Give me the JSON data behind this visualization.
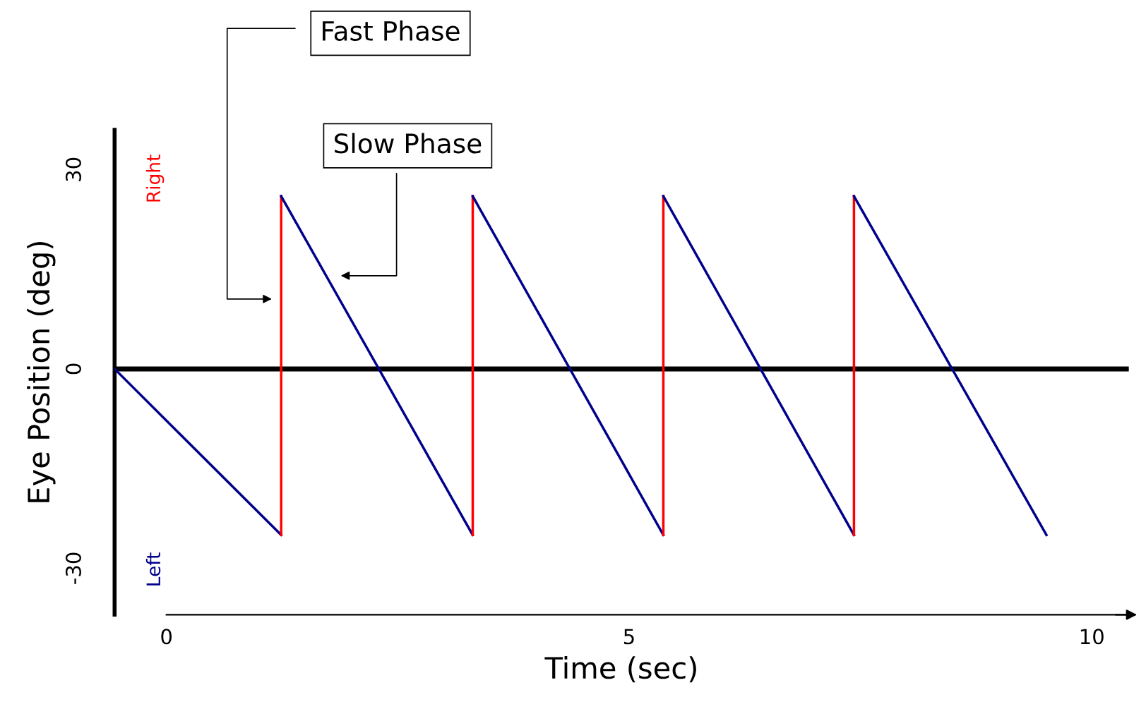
{
  "chart_data": {
    "type": "line",
    "xlabel": "Time (sec)",
    "ylabel": "Eye Position (deg)",
    "xlim": [
      -0.56,
      10.4
    ],
    "ylim": [
      -37,
      36
    ],
    "xticks": [
      0,
      5,
      10
    ],
    "yticks": [
      -30,
      0,
      30
    ],
    "grid": false,
    "legend": false,
    "marker": "none",
    "line_style": "solid",
    "series": [
      {
        "color": "#00008b",
        "x": [
          -0.56,
          1.24
        ],
        "values": [
          0,
          -25
        ]
      },
      {
        "color": "#ff0000",
        "x": [
          1.24,
          1.24
        ],
        "values": [
          -25,
          26
        ]
      },
      {
        "color": "#00008b",
        "x": [
          1.24,
          3.31
        ],
        "values": [
          26,
          -25
        ]
      },
      {
        "color": "#ff0000",
        "x": [
          3.31,
          3.31
        ],
        "values": [
          -25,
          26
        ]
      },
      {
        "color": "#00008b",
        "x": [
          3.31,
          5.37
        ],
        "values": [
          26,
          -25
        ]
      },
      {
        "color": "#ff0000",
        "x": [
          5.37,
          5.37
        ],
        "values": [
          -25,
          26
        ]
      },
      {
        "color": "#00008b",
        "x": [
          5.37,
          7.43
        ],
        "values": [
          26,
          -25
        ]
      },
      {
        "color": "#ff0000",
        "x": [
          7.43,
          7.43
        ],
        "values": [
          -25,
          26
        ]
      },
      {
        "color": "#00008b",
        "x": [
          7.43,
          9.51
        ],
        "values": [
          26,
          -25
        ]
      }
    ],
    "ref_lines": [
      {
        "axis": "y",
        "value": 0,
        "color": "#000000"
      }
    ],
    "annotations": [
      "Fast Phase",
      "Slow Phase",
      "Right",
      "Left"
    ]
  }
}
